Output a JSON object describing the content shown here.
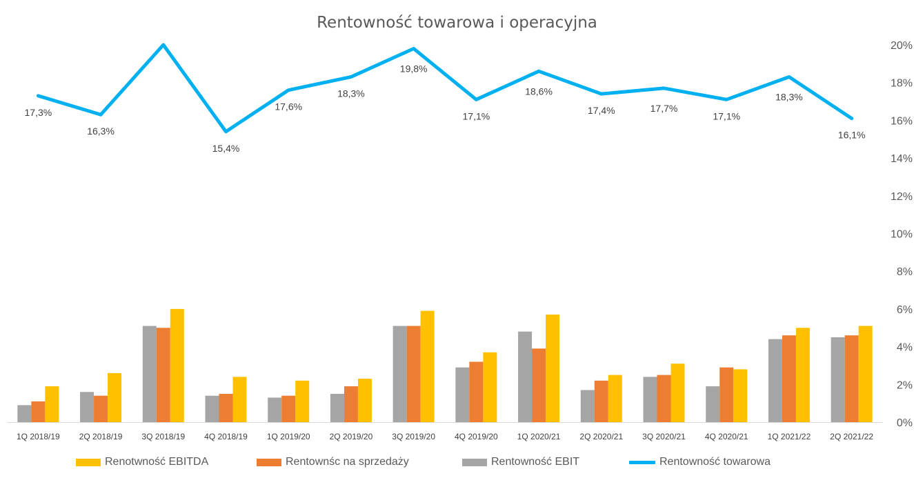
{
  "chart_data": {
    "type": "bar",
    "title": "Rentowność towarowa i operacyjna",
    "categories": [
      "1Q 2018/19",
      "2Q 2018/19",
      "3Q 2018/19",
      "4Q 2018/19",
      "1Q 2019/20",
      "2Q 2019/20",
      "3Q 2019/20",
      "4Q 2019/20",
      "1Q 2020/21",
      "2Q 2020/21",
      "3Q 2020/21",
      "4Q 2020/21",
      "1Q 2021/22",
      "2Q 2021/22"
    ],
    "y_ticks": [
      "0%",
      "2%",
      "4%",
      "6%",
      "8%",
      "10%",
      "12%",
      "14%",
      "16%",
      "18%",
      "20%"
    ],
    "ylim": [
      0,
      20
    ],
    "y_axis_side": "right",
    "grid": false,
    "legend_position": "bottom",
    "series": [
      {
        "name": "Rentowność EBIT",
        "type": "bar",
        "color": "#A5A5A5",
        "values": [
          0.9,
          1.6,
          5.1,
          1.4,
          1.3,
          1.5,
          5.1,
          2.9,
          4.8,
          1.7,
          2.4,
          1.9,
          4.4,
          4.5
        ]
      },
      {
        "name": "Rentownśc na sprzedaży",
        "type": "bar",
        "color": "#ED7D31",
        "values": [
          1.1,
          1.4,
          5.0,
          1.5,
          1.4,
          1.9,
          5.1,
          3.2,
          3.9,
          2.2,
          2.5,
          2.9,
          4.6,
          4.6
        ]
      },
      {
        "name": "Renotwność EBITDA",
        "type": "bar",
        "color": "#FFC000",
        "values": [
          1.9,
          2.6,
          6.0,
          2.4,
          2.2,
          2.3,
          5.9,
          3.7,
          5.7,
          2.5,
          3.1,
          2.8,
          5.0,
          5.1
        ]
      },
      {
        "name": "Rentowność towarowa",
        "type": "line",
        "color": "#00B0F0",
        "values": [
          17.3,
          16.3,
          20.0,
          15.4,
          17.6,
          18.3,
          19.8,
          17.1,
          18.6,
          17.4,
          17.7,
          17.1,
          18.3,
          16.1
        ],
        "labels": [
          "17,3%",
          "16,3%",
          "",
          "15,4%",
          "17,6%",
          "18,3%",
          "19,8%",
          "17,1%",
          "18,6%",
          "17,4%",
          "17,7%",
          "17,1%",
          "18,3%",
          "16,1%"
        ]
      }
    ],
    "legend": [
      {
        "name": "Renotwność EBITDA",
        "kind": "bar",
        "color": "#FFC000"
      },
      {
        "name": "Rentownśc na sprzedaży",
        "kind": "bar",
        "color": "#ED7D31"
      },
      {
        "name": "Rentowność EBIT",
        "kind": "bar",
        "color": "#A5A5A5"
      },
      {
        "name": "Rentowność towarowa",
        "kind": "line",
        "color": "#00B0F0"
      }
    ]
  }
}
